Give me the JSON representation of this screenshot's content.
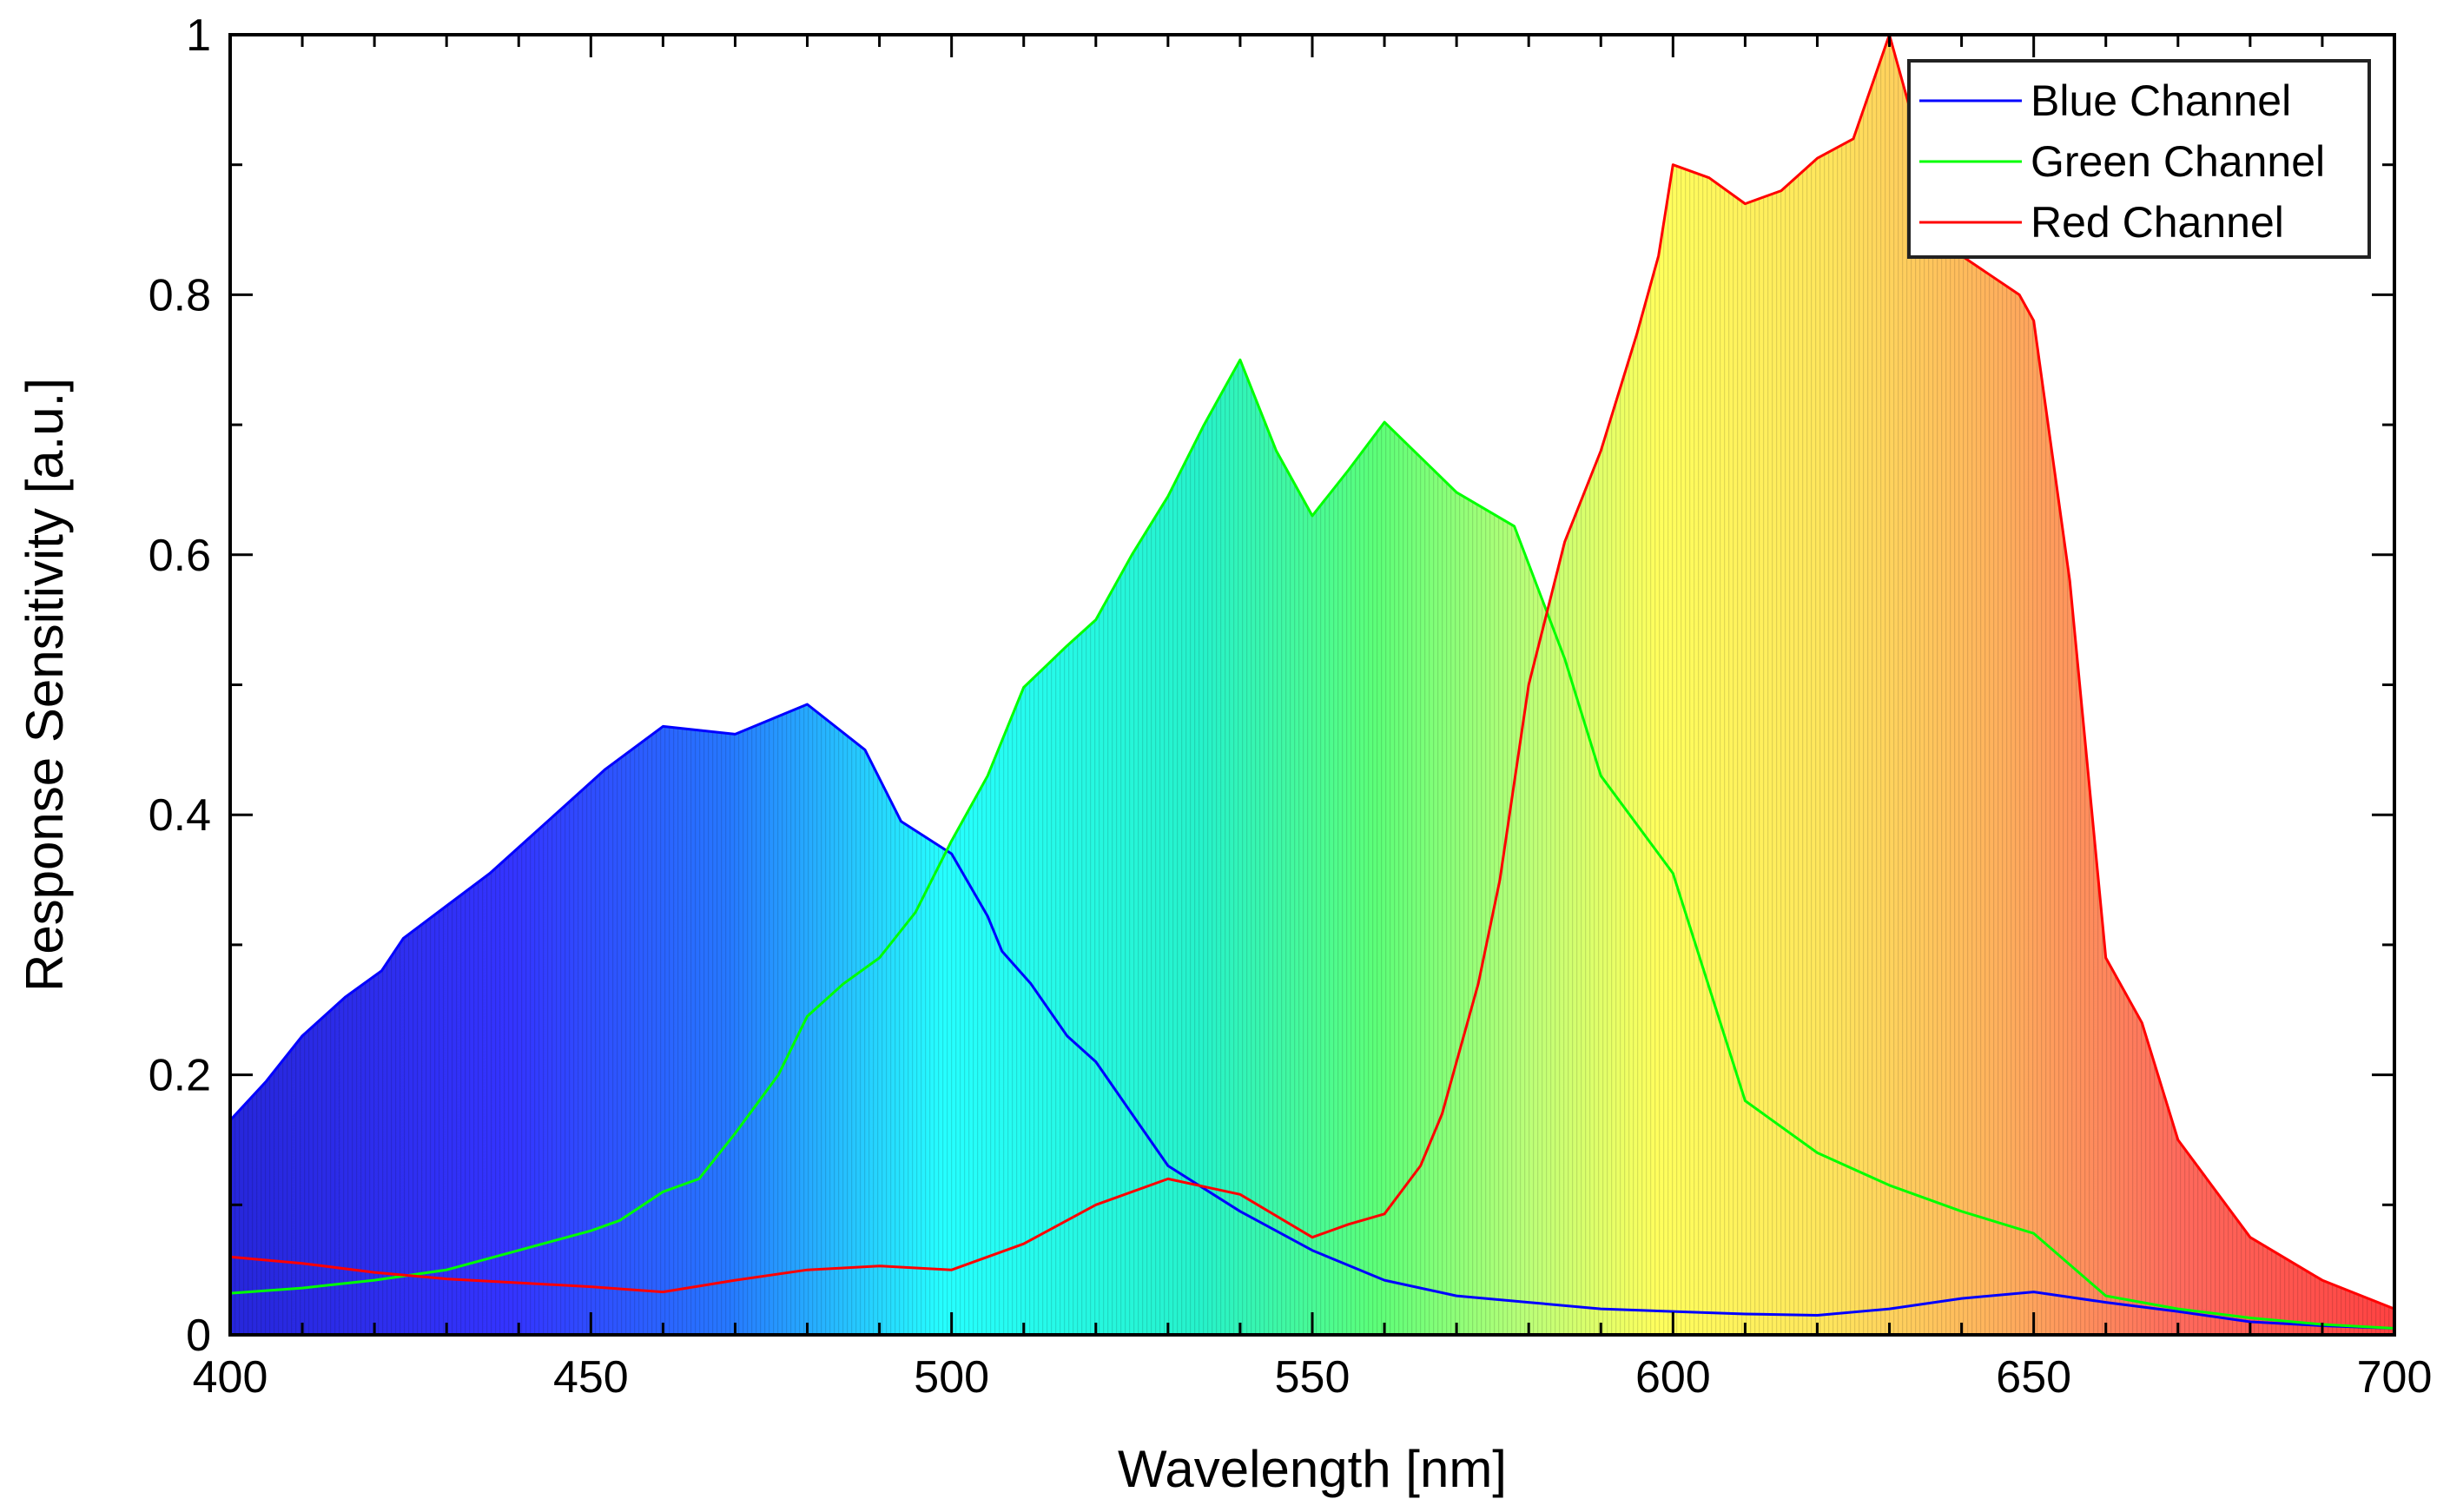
{
  "chart_data": {
    "type": "line",
    "title": "",
    "xlabel": "Wavelength [nm]",
    "ylabel": "Response Sensitivity [a.u.]",
    "xlim": [
      400,
      700
    ],
    "ylim": [
      0,
      1
    ],
    "xticks": [
      400,
      450,
      500,
      550,
      600,
      650,
      700
    ],
    "yticks": [
      0,
      0.2,
      0.4,
      0.6,
      0.8,
      1
    ],
    "xtick_labels": [
      "400",
      "450",
      "500",
      "550",
      "600",
      "650",
      "700"
    ],
    "ytick_labels": [
      "0",
      "0.2",
      "0.4",
      "0.6",
      "0.8",
      "1"
    ],
    "grid": false,
    "legend_position": "top-right",
    "background_fill": "visible-spectrum colors under each channel's curve",
    "series": [
      {
        "name": "Blue Channel",
        "color": "#0000ff",
        "x": [
          400,
          405,
          410,
          416,
          421,
          424,
          430,
          436,
          440,
          446,
          452,
          460,
          470,
          480,
          488,
          493,
          500,
          505,
          507,
          511,
          516,
          520,
          525,
          530,
          540,
          550,
          560,
          570,
          580,
          590,
          600,
          610,
          620,
          630,
          640,
          650,
          660,
          670,
          680,
          690,
          700
        ],
        "y": [
          0.165,
          0.195,
          0.23,
          0.26,
          0.28,
          0.305,
          0.33,
          0.355,
          0.375,
          0.405,
          0.435,
          0.468,
          0.462,
          0.485,
          0.45,
          0.395,
          0.37,
          0.322,
          0.295,
          0.27,
          0.23,
          0.21,
          0.17,
          0.13,
          0.095,
          0.065,
          0.042,
          0.03,
          0.025,
          0.02,
          0.018,
          0.016,
          0.015,
          0.02,
          0.028,
          0.033,
          0.025,
          0.018,
          0.01,
          0.007,
          0.005
        ]
      },
      {
        "name": "Green Channel",
        "color": "#00ff00",
        "x": [
          400,
          410,
          420,
          430,
          440,
          450,
          454,
          460,
          465,
          470,
          476,
          480,
          485,
          490,
          495,
          500,
          505,
          510,
          516,
          520,
          525,
          530,
          535,
          540,
          545,
          550,
          555,
          560,
          570,
          578,
          585,
          590,
          600,
          610,
          620,
          630,
          640,
          650,
          660,
          670,
          680,
          690,
          700
        ],
        "y": [
          0.032,
          0.036,
          0.042,
          0.05,
          0.065,
          0.08,
          0.088,
          0.11,
          0.12,
          0.155,
          0.2,
          0.245,
          0.27,
          0.29,
          0.325,
          0.38,
          0.43,
          0.498,
          0.53,
          0.55,
          0.6,
          0.645,
          0.7,
          0.75,
          0.68,
          0.63,
          0.665,
          0.702,
          0.648,
          0.622,
          0.52,
          0.43,
          0.355,
          0.18,
          0.14,
          0.115,
          0.095,
          0.078,
          0.03,
          0.02,
          0.013,
          0.008,
          0.005
        ]
      },
      {
        "name": "Red Channel",
        "color": "#ff0000",
        "x": [
          400,
          410,
          420,
          430,
          440,
          450,
          460,
          470,
          480,
          490,
          500,
          510,
          520,
          530,
          540,
          550,
          555,
          560,
          565,
          568,
          570,
          573,
          576,
          580,
          585,
          590,
          595,
          598,
          600,
          605,
          610,
          615,
          620,
          625,
          630,
          635,
          640,
          648,
          650,
          655,
          660,
          665,
          670,
          680,
          690,
          700
        ],
        "y": [
          0.06,
          0.055,
          0.048,
          0.043,
          0.04,
          0.037,
          0.033,
          0.042,
          0.05,
          0.053,
          0.05,
          0.07,
          0.1,
          0.12,
          0.108,
          0.075,
          0.085,
          0.093,
          0.13,
          0.17,
          0.21,
          0.27,
          0.35,
          0.5,
          0.61,
          0.68,
          0.77,
          0.83,
          0.9,
          0.89,
          0.87,
          0.88,
          0.905,
          0.92,
          1.0,
          0.9,
          0.83,
          0.8,
          0.78,
          0.58,
          0.29,
          0.24,
          0.15,
          0.075,
          0.042,
          0.02
        ]
      }
    ]
  }
}
